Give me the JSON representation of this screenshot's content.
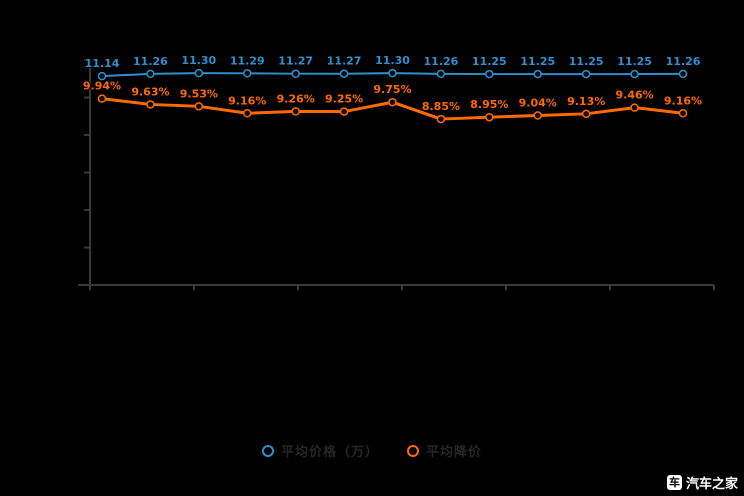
{
  "watermark": {
    "text": "汽车之家"
  },
  "legend": {
    "items": [
      {
        "label": "平均价格（万）"
      },
      {
        "label": "平均降价"
      }
    ]
  },
  "chart_data": {
    "type": "line",
    "title": "",
    "xlabel": "",
    "ylabel": "",
    "ylim": [
      0,
      12
    ],
    "grid": false,
    "legend_position": "bottom",
    "series": [
      {
        "name": "平均价格（万）",
        "color": "#2f8fd0",
        "label_suffix": "",
        "values": [
          11.14,
          11.26,
          11.3,
          11.29,
          11.27,
          11.27,
          11.3,
          11.26,
          11.25,
          11.25,
          11.25,
          11.25,
          11.26
        ]
      },
      {
        "name": "平均降价",
        "color": "#ff6a00",
        "label_suffix": "%",
        "values": [
          9.94,
          9.63,
          9.53,
          9.16,
          9.26,
          9.25,
          9.75,
          8.85,
          8.95,
          9.04,
          9.13,
          9.46,
          9.16
        ]
      }
    ]
  }
}
